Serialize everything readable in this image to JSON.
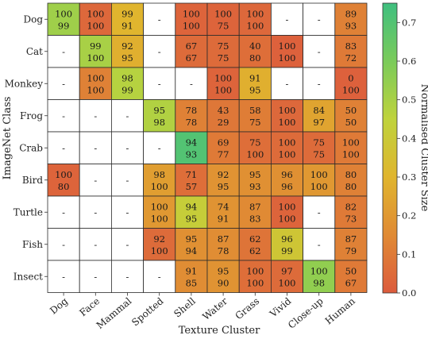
{
  "chart_data": {
    "type": "heatmap",
    "title": "",
    "xlabel": "Texture Cluster",
    "ylabel": "ImageNet Class",
    "colorbar_label": "Normalised Cluster Size",
    "colorbar_range": [
      0.0,
      0.75
    ],
    "colorbar_ticks": [
      "0.0",
      "0.1",
      "0.2",
      "0.3",
      "0.4",
      "0.5",
      "0.6",
      "0.7"
    ],
    "colorbar_tick_values": [
      0.0,
      0.1,
      0.2,
      0.3,
      0.4,
      0.5,
      0.6,
      0.7
    ],
    "colormap_stops": [
      "#dc5b3d",
      "#e08a34",
      "#e0b52e",
      "#bfd33c",
      "#7acb5a",
      "#3fbf7f"
    ],
    "x_categories": [
      "Dog",
      "Face",
      "Mammal",
      "Spotted",
      "Shell",
      "Water",
      "Grass",
      "Vivid",
      "Close-up",
      "Human"
    ],
    "y_categories": [
      "Dog",
      "Cat",
      "Monkey",
      "Frog",
      "Crab",
      "Bird",
      "Turtle",
      "Fish",
      "Insect"
    ],
    "empty_marker": "-",
    "cells": [
      [
        {
          "v": 0.52,
          "a": "100",
          "b": "99"
        },
        {
          "v": 0.04,
          "a": "100",
          "b": "100"
        },
        {
          "v": 0.3,
          "a": "99",
          "b": "91"
        },
        null,
        {
          "v": 0.03,
          "a": "100",
          "b": "100"
        },
        {
          "v": 0.03,
          "a": "100",
          "b": "75"
        },
        {
          "v": 0.04,
          "a": "100",
          "b": "100"
        },
        null,
        null,
        {
          "v": 0.12,
          "a": "89",
          "b": "93"
        }
      ],
      [
        null,
        {
          "v": 0.5,
          "a": "99",
          "b": "100"
        },
        {
          "v": 0.28,
          "a": "92",
          "b": "95"
        },
        null,
        {
          "v": 0.05,
          "a": "67",
          "b": "67"
        },
        {
          "v": 0.05,
          "a": "75",
          "b": "75"
        },
        {
          "v": 0.06,
          "a": "40",
          "b": "80"
        },
        {
          "v": 0.02,
          "a": "100",
          "b": "100"
        },
        null,
        {
          "v": 0.1,
          "a": "83",
          "b": "72"
        }
      ],
      [
        null,
        {
          "v": 0.12,
          "a": "100",
          "b": "100"
        },
        {
          "v": 0.47,
          "a": "98",
          "b": "99"
        },
        null,
        null,
        {
          "v": 0.03,
          "a": "100",
          "b": "100"
        },
        {
          "v": 0.28,
          "a": "91",
          "b": "95"
        },
        null,
        null,
        {
          "v": 0.02,
          "a": "0",
          "b": "100"
        }
      ],
      [
        null,
        null,
        null,
        {
          "v": 0.48,
          "a": "95",
          "b": "98"
        },
        {
          "v": 0.12,
          "a": "78",
          "b": "78"
        },
        {
          "v": 0.09,
          "a": "43",
          "b": "29"
        },
        {
          "v": 0.11,
          "a": "58",
          "b": "75"
        },
        {
          "v": 0.04,
          "a": "100",
          "b": "100"
        },
        {
          "v": 0.24,
          "a": "84",
          "b": "97"
        },
        {
          "v": 0.12,
          "a": "50",
          "b": "50"
        }
      ],
      [
        null,
        null,
        null,
        null,
        {
          "v": 0.7,
          "a": "94",
          "b": "93"
        },
        {
          "v": 0.1,
          "a": "69",
          "b": "77"
        },
        {
          "v": 0.06,
          "a": "75",
          "b": "100"
        },
        {
          "v": 0.05,
          "a": "100",
          "b": "100"
        },
        {
          "v": 0.05,
          "a": "75",
          "b": "75"
        },
        {
          "v": 0.1,
          "a": "100",
          "b": "100"
        }
      ],
      [
        {
          "v": 0.03,
          "a": "100",
          "b": "80"
        },
        null,
        null,
        {
          "v": 0.22,
          "a": "98",
          "b": "100"
        },
        {
          "v": 0.06,
          "a": "71",
          "b": "57"
        },
        {
          "v": 0.18,
          "a": "92",
          "b": "95"
        },
        {
          "v": 0.17,
          "a": "95",
          "b": "93"
        },
        {
          "v": 0.17,
          "a": "96",
          "b": "96"
        },
        {
          "v": 0.2,
          "a": "100",
          "b": "100"
        },
        {
          "v": 0.12,
          "a": "80",
          "b": "80"
        }
      ],
      [
        null,
        null,
        null,
        {
          "v": 0.2,
          "a": "100",
          "b": "100"
        },
        {
          "v": 0.42,
          "a": "94",
          "b": "95"
        },
        {
          "v": 0.18,
          "a": "74",
          "b": "91"
        },
        {
          "v": 0.15,
          "a": "87",
          "b": "83"
        },
        {
          "v": 0.03,
          "a": "100",
          "b": "100"
        },
        null,
        {
          "v": 0.1,
          "a": "82",
          "b": "73"
        }
      ],
      [
        null,
        null,
        null,
        {
          "v": 0.05,
          "a": "92",
          "b": "100"
        },
        {
          "v": 0.17,
          "a": "95",
          "b": "94"
        },
        {
          "v": 0.16,
          "a": "87",
          "b": "78"
        },
        {
          "v": 0.08,
          "a": "62",
          "b": "62"
        },
        {
          "v": 0.38,
          "a": "96",
          "b": "99"
        },
        null,
        {
          "v": 0.12,
          "a": "87",
          "b": "79"
        }
      ],
      [
        null,
        null,
        null,
        null,
        {
          "v": 0.16,
          "a": "91",
          "b": "85"
        },
        {
          "v": 0.18,
          "a": "95",
          "b": "90"
        },
        {
          "v": 0.06,
          "a": "100",
          "b": "100"
        },
        {
          "v": 0.05,
          "a": "97",
          "b": "100"
        },
        {
          "v": 0.55,
          "a": "100",
          "b": "98"
        },
        {
          "v": 0.1,
          "a": "50",
          "b": "67"
        }
      ]
    ]
  }
}
